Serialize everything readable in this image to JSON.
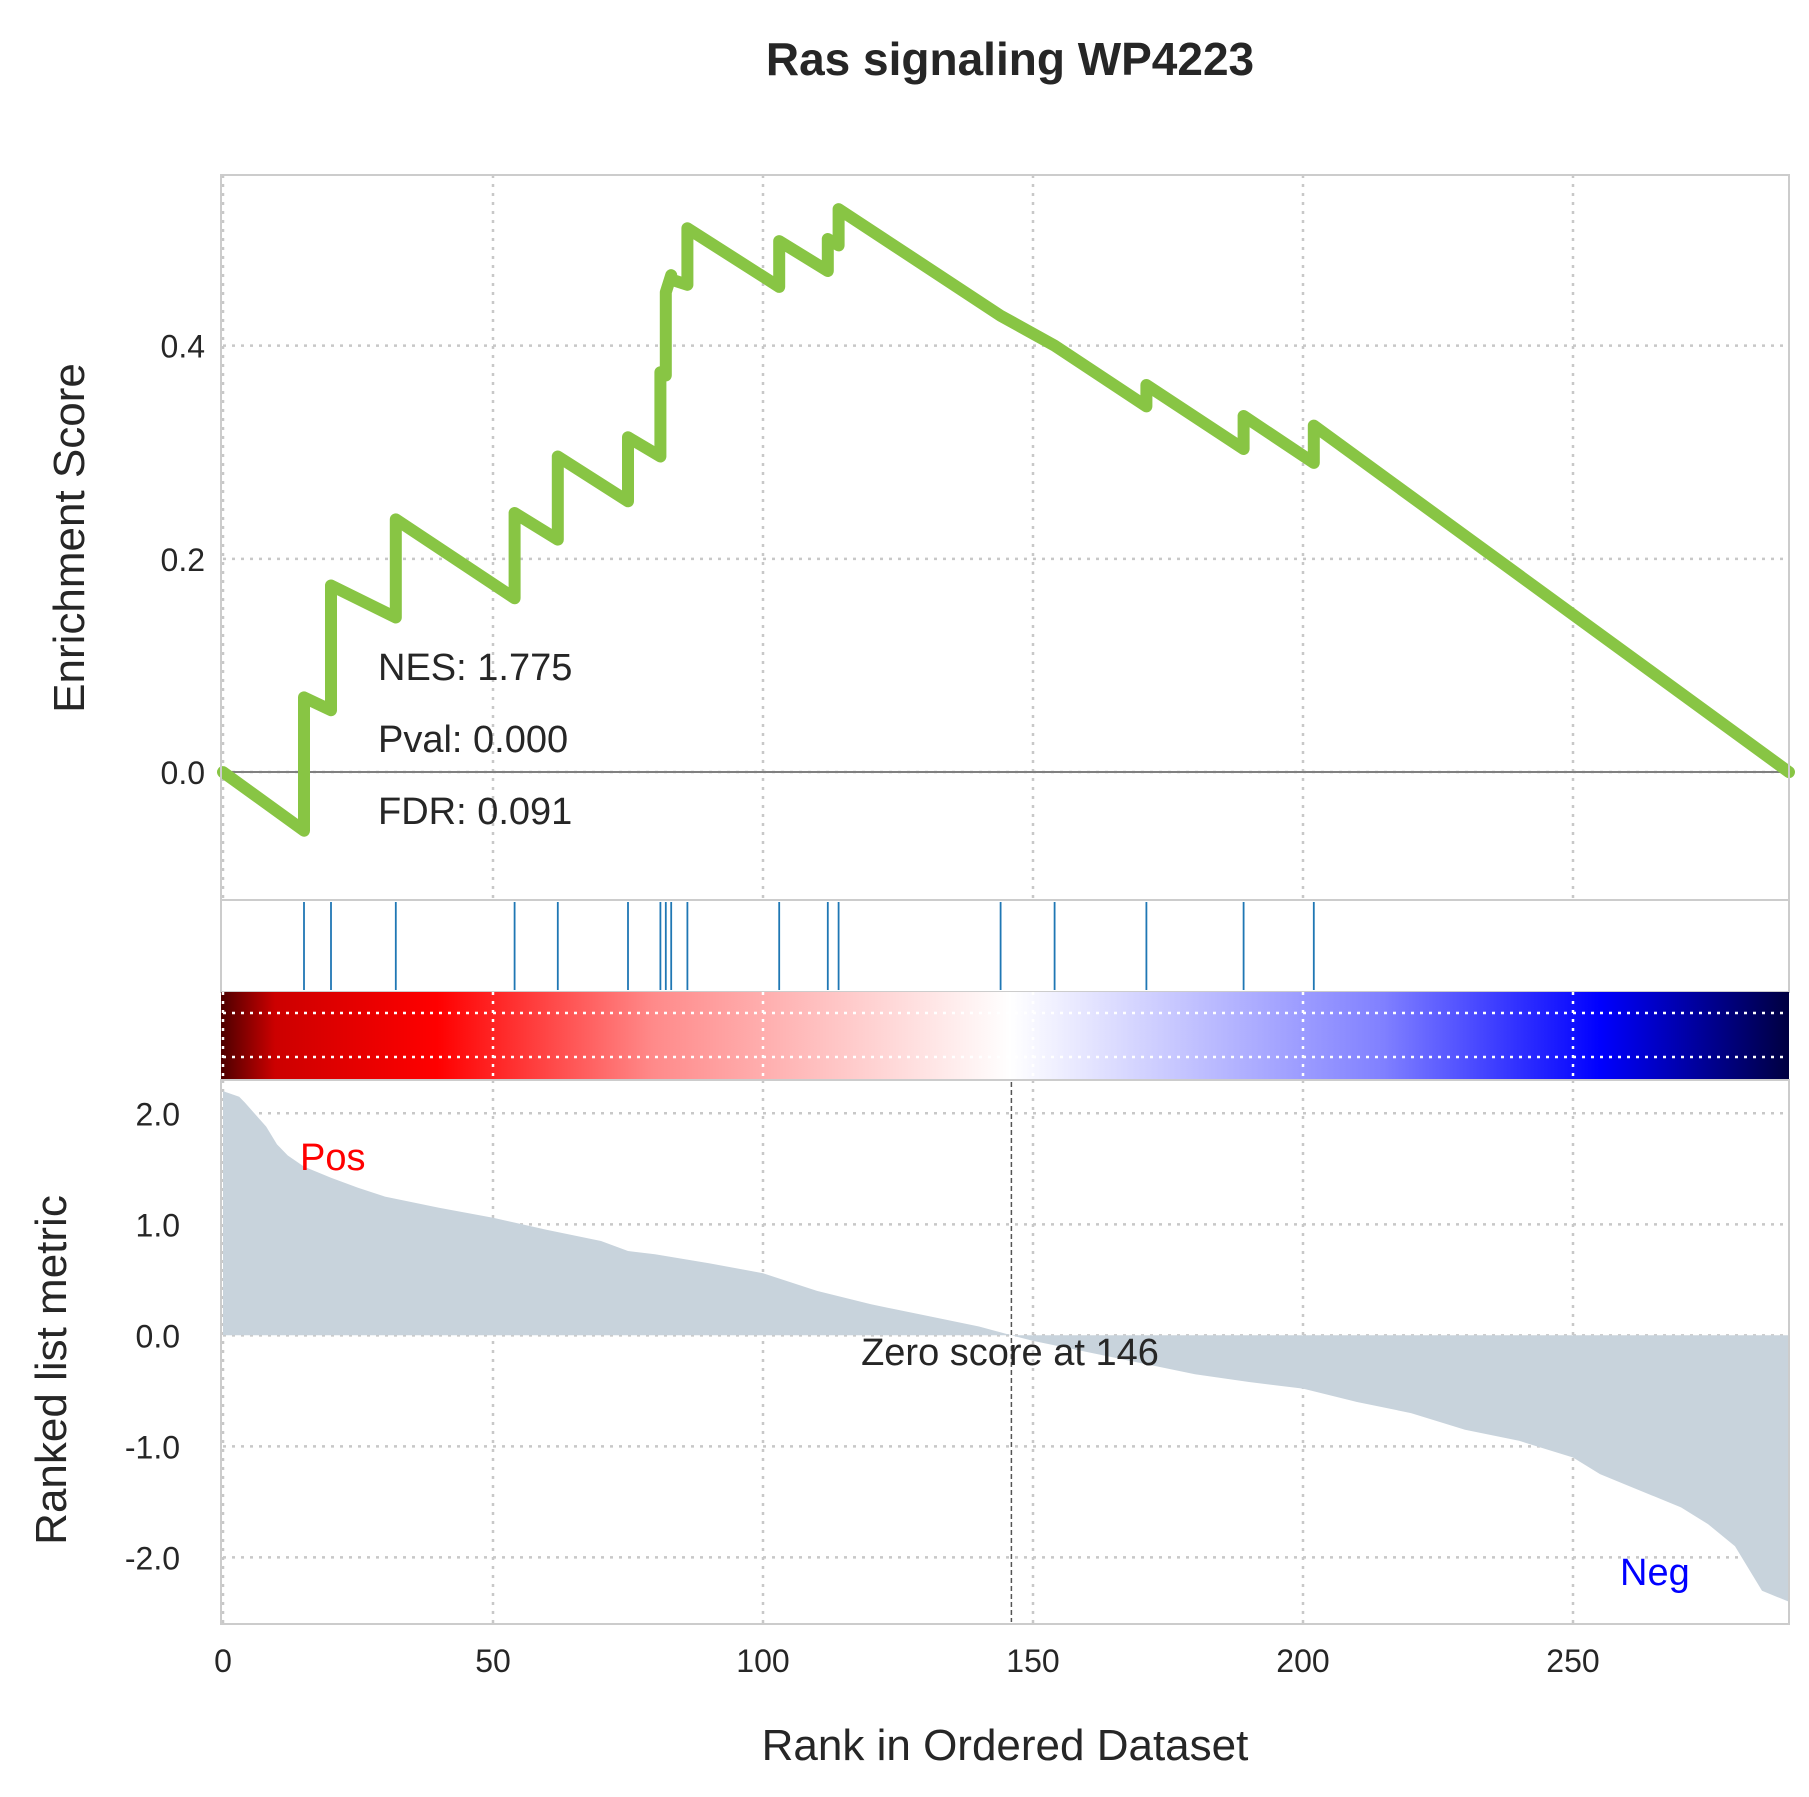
{
  "chart_data": [
    {
      "type": "line",
      "panel": "running-enrichment-score",
      "title": "Ras signaling WP4223",
      "ylabel": "Enrichment Score",
      "xlim": [
        0,
        290
      ],
      "ylim": [
        -0.12,
        0.56
      ],
      "yticks": [
        0.0,
        0.2,
        0.4
      ],
      "ytick_labels": [
        "0.0",
        "0.2",
        "0.4"
      ],
      "grid": true,
      "line_color": "#88c544",
      "series": [
        {
          "x": [
            0,
            15,
            15,
            20,
            20,
            32,
            32,
            54,
            54,
            62,
            62,
            75,
            75,
            81,
            81,
            82,
            82,
            83,
            83,
            86,
            86,
            103,
            103,
            112,
            112,
            114,
            114,
            144,
            144,
            154,
            154,
            171,
            171,
            189,
            189,
            202,
            202,
            290
          ],
          "y": [
            0.0,
            -0.055,
            0.07,
            0.058,
            0.175,
            0.145,
            0.237,
            0.163,
            0.243,
            0.218,
            0.296,
            0.254,
            0.314,
            0.296,
            0.375,
            0.372,
            0.45,
            0.466,
            0.462,
            0.457,
            0.51,
            0.455,
            0.498,
            0.47,
            0.5,
            0.494,
            0.528,
            0.428,
            0.428,
            0.4,
            0.4,
            0.343,
            0.363,
            0.303,
            0.334,
            0.29,
            0.325,
            0.0
          ]
        }
      ],
      "annotations": [
        "NES: 1.775",
        "Pval: 0.000",
        "FDR: 0.091"
      ]
    },
    {
      "type": "scatter",
      "panel": "gene-hits",
      "hit_color": "#1f77b4",
      "hits": [
        15,
        20,
        32,
        54,
        62,
        75,
        81,
        82,
        83,
        86,
        103,
        112,
        114,
        144,
        154,
        171,
        189,
        202
      ]
    },
    {
      "type": "heatmap",
      "panel": "rank-colorbar",
      "colormap": "seismic_r",
      "stops": [
        {
          "x": 0,
          "color": "#4d0000"
        },
        {
          "x": 10,
          "color": "#cc0000"
        },
        {
          "x": 40,
          "color": "#ff0000"
        },
        {
          "x": 80,
          "color": "#ff8a8a"
        },
        {
          "x": 146,
          "color": "#ffffff"
        },
        {
          "x": 215,
          "color": "#8080ff"
        },
        {
          "x": 255,
          "color": "#0000ff"
        },
        {
          "x": 290,
          "color": "#000040"
        }
      ]
    },
    {
      "type": "area",
      "panel": "ranked-list-metric",
      "xlabel": "Rank in Ordered Dataset",
      "ylabel": "Ranked list metric",
      "xlim": [
        0,
        290
      ],
      "ylim": [
        -2.6,
        2.3
      ],
      "xticks": [
        0,
        50,
        100,
        150,
        200,
        250
      ],
      "xtick_labels": [
        "0",
        "50",
        "100",
        "150",
        "200",
        "250"
      ],
      "yticks": [
        2.0,
        1.0,
        0.0,
        -1.0,
        -2.0
      ],
      "ytick_labels": [
        "2.0",
        "1.0",
        "0.0",
        "-1.0",
        "-2.0"
      ],
      "grid": true,
      "fill_color": "#c8d3dc",
      "series": [
        {
          "x": [
            0,
            3,
            4,
            8,
            10,
            12,
            15,
            20,
            25,
            30,
            40,
            50,
            60,
            70,
            75,
            80,
            90,
            100,
            110,
            120,
            130,
            140,
            146,
            150,
            160,
            170,
            180,
            190,
            200,
            210,
            220,
            230,
            240,
            250,
            255,
            260,
            265,
            270,
            275,
            280,
            285,
            290
          ],
          "y": [
            2.2,
            2.15,
            2.1,
            1.88,
            1.72,
            1.62,
            1.52,
            1.42,
            1.33,
            1.25,
            1.15,
            1.06,
            0.95,
            0.85,
            0.76,
            0.73,
            0.65,
            0.56,
            0.4,
            0.28,
            0.18,
            0.08,
            0.0,
            -0.05,
            -0.15,
            -0.25,
            -0.35,
            -0.42,
            -0.48,
            -0.6,
            -0.7,
            -0.85,
            -0.95,
            -1.1,
            -1.25,
            -1.35,
            -1.45,
            -1.55,
            -1.7,
            -1.9,
            -2.3,
            -2.4
          ]
        }
      ],
      "zero_cross_rank": 146,
      "annotations": {
        "zero_score": "Zero score at 146",
        "pos": "Pos",
        "neg": "Neg"
      },
      "pos_color": "#ff0000",
      "neg_color": "#0000ff"
    }
  ]
}
